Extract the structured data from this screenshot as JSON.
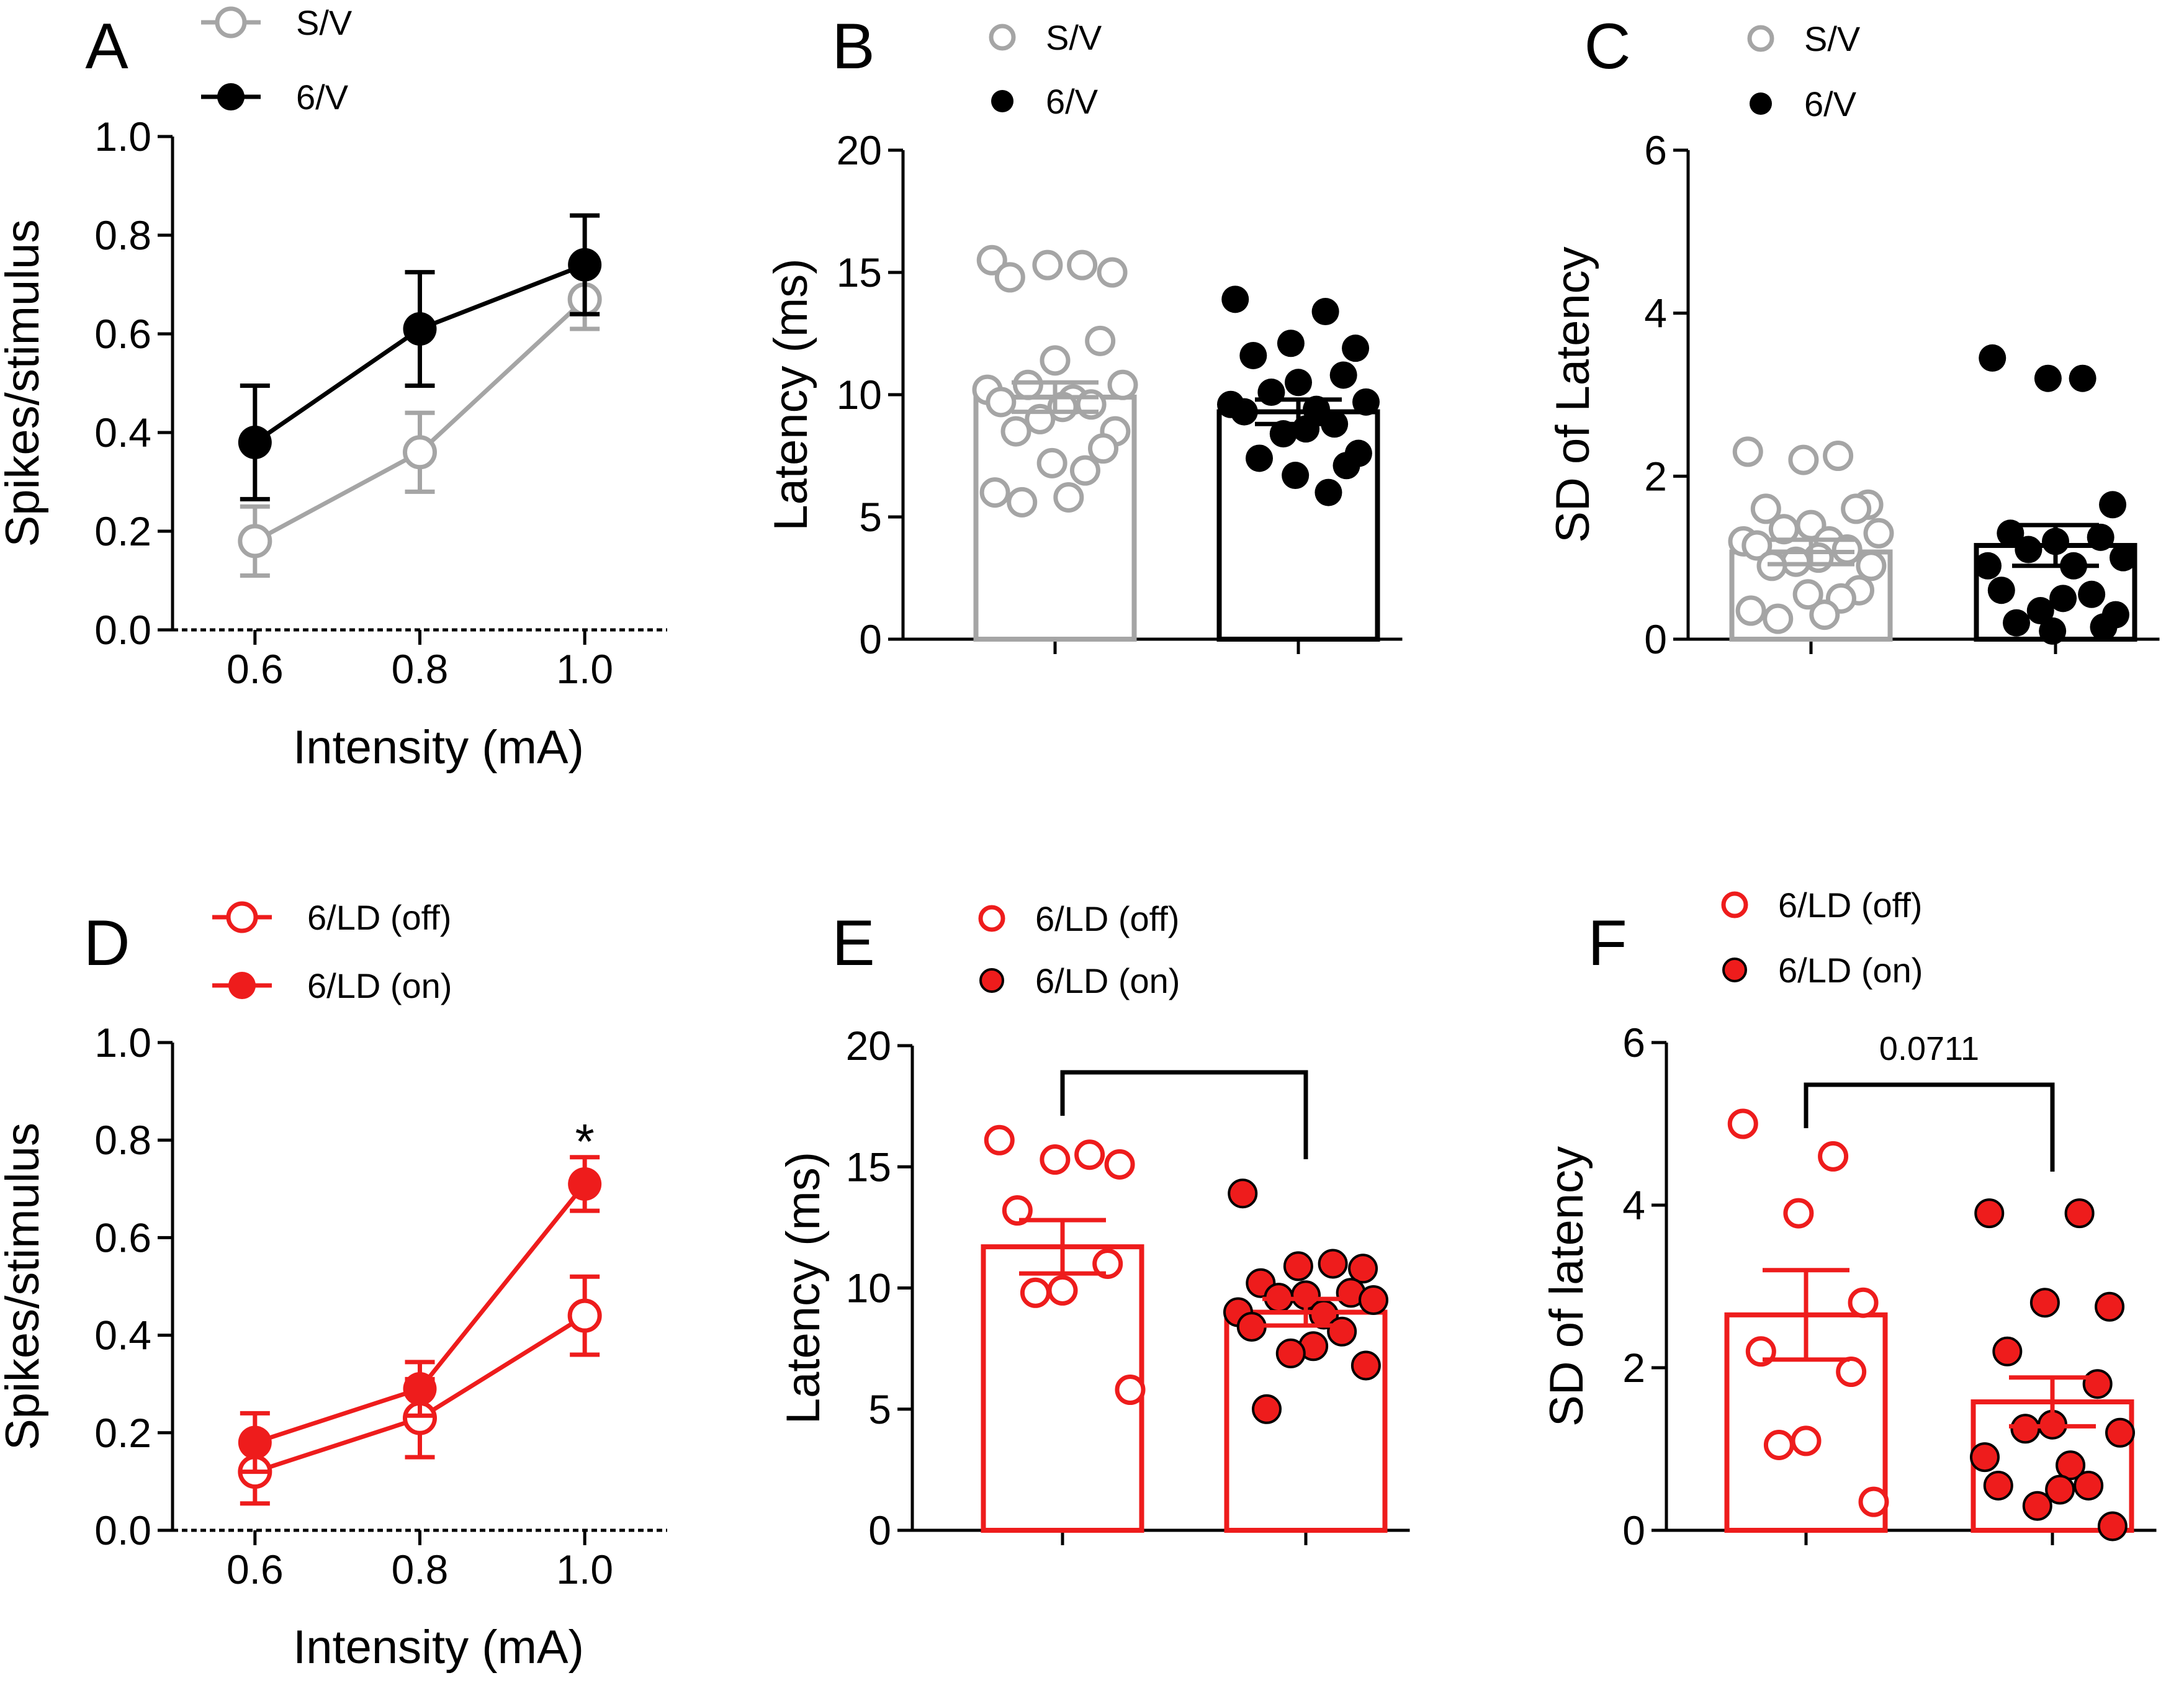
{
  "colors": {
    "grey": "#a5a5a5",
    "black": "#000000",
    "red": "#ee1c1c",
    "white": "#ffffff"
  },
  "chart_data": [
    {
      "panel": "A",
      "type": "line",
      "xlabel": "Intensity (mA)",
      "ylabel": "Spikes/stimulus",
      "x": [
        0.6,
        0.8,
        1.0
      ],
      "x_ticks": [
        "0.6",
        "0.8",
        "1.0"
      ],
      "ylim": [
        0,
        1.0
      ],
      "y_ticks": [
        "0.0",
        "0.2",
        "0.4",
        "0.6",
        "0.8",
        "1.0"
      ],
      "series": [
        {
          "name": "S/V",
          "color": "grey",
          "filled": false,
          "values": [
            0.18,
            0.36,
            0.67
          ],
          "sem": [
            0.07,
            0.08,
            0.06
          ]
        },
        {
          "name": "6/V",
          "color": "black",
          "filled": true,
          "values": [
            0.38,
            0.61,
            0.74
          ],
          "sem": [
            0.115,
            0.115,
            0.1
          ]
        }
      ],
      "annotations": []
    },
    {
      "panel": "B",
      "type": "bar",
      "ylabel": "Latency (ms)",
      "ylim": [
        0,
        20
      ],
      "y_ticks": [
        "0",
        "5",
        "10",
        "15",
        "20"
      ],
      "series": [
        {
          "name": "S/V",
          "color": "grey",
          "filled": false,
          "mean": 9.9,
          "sem": 0.6,
          "points": [
            15.5,
            15.3,
            15.3,
            15.0,
            14.8,
            12.2,
            11.4,
            10.4,
            10.4,
            10.2,
            9.8,
            9.7,
            9.6,
            9.5,
            9.0,
            8.5,
            8.5,
            7.8,
            7.2,
            6.9,
            6.0,
            5.8,
            5.6
          ]
        },
        {
          "name": "6/V",
          "color": "black",
          "filled": true,
          "mean": 9.3,
          "sem": 0.5,
          "points": [
            13.9,
            13.4,
            12.1,
            11.9,
            11.6,
            10.8,
            10.5,
            10.1,
            9.7,
            9.6,
            9.4,
            9.3,
            8.8,
            8.6,
            8.4,
            7.6,
            7.4,
            7.1,
            6.7,
            6.0
          ]
        }
      ],
      "annotations": []
    },
    {
      "panel": "C",
      "type": "bar",
      "ylabel": "SD of Latency",
      "ylim": [
        0,
        6
      ],
      "y_ticks": [
        "0",
        "2",
        "4",
        "6"
      ],
      "series": [
        {
          "name": "S/V",
          "color": "grey",
          "filled": false,
          "mean": 1.07,
          "sem": 0.15,
          "points": [
            2.3,
            2.25,
            2.2,
            1.65,
            1.6,
            1.6,
            1.4,
            1.35,
            1.3,
            1.2,
            1.2,
            1.15,
            1.1,
            1.0,
            0.95,
            0.9,
            0.9,
            0.6,
            0.55,
            0.5,
            0.35,
            0.3,
            0.25
          ]
        },
        {
          "name": "6/V",
          "color": "black",
          "filled": true,
          "mean": 1.15,
          "sem": 0.25,
          "points": [
            3.45,
            3.2,
            3.2,
            1.65,
            1.3,
            1.25,
            1.2,
            1.1,
            1.0,
            0.9,
            0.9,
            0.6,
            0.55,
            0.5,
            0.35,
            0.3,
            0.2,
            0.15,
            0.1
          ]
        }
      ],
      "annotations": []
    },
    {
      "panel": "D",
      "type": "line",
      "xlabel": "Intensity (mA)",
      "ylabel": "Spikes/stimulus",
      "x": [
        0.6,
        0.8,
        1.0
      ],
      "x_ticks": [
        "0.6",
        "0.8",
        "1.0"
      ],
      "ylim": [
        0,
        1.0
      ],
      "y_ticks": [
        "0.0",
        "0.2",
        "0.4",
        "0.6",
        "0.8",
        "1.0"
      ],
      "series": [
        {
          "name": "6/LD (off)",
          "color": "red",
          "filled": false,
          "values": [
            0.12,
            0.23,
            0.44
          ],
          "sem": [
            0.065,
            0.08,
            0.08
          ]
        },
        {
          "name": "6/LD (on)",
          "color": "red",
          "filled": true,
          "values": [
            0.18,
            0.29,
            0.71
          ],
          "sem": [
            0.06,
            0.055,
            0.055
          ]
        }
      ],
      "annotations": [
        {
          "text": "*",
          "x": 1.0,
          "y": 0.8
        }
      ]
    },
    {
      "panel": "E",
      "type": "bar",
      "ylabel": "Latency (ms)",
      "ylim": [
        0,
        20
      ],
      "y_ticks": [
        "0",
        "5",
        "10",
        "15",
        "20"
      ],
      "series": [
        {
          "name": "6/LD (off)",
          "color": "red",
          "filled": false,
          "mean": 11.7,
          "sem": 1.1,
          "points": [
            16.1,
            15.5,
            15.3,
            15.1,
            13.2,
            11.0,
            9.9,
            9.8,
            5.8
          ]
        },
        {
          "name": "6/LD (on)",
          "color": "red",
          "filled": true,
          "mean": 9.0,
          "sem": 0.55,
          "points": [
            13.9,
            11.0,
            10.9,
            10.8,
            10.2,
            9.8,
            9.7,
            9.6,
            9.5,
            9.0,
            8.9,
            8.4,
            8.2,
            7.6,
            7.3,
            6.8,
            5.0
          ]
        }
      ],
      "annotations": [
        {
          "type": "bracket",
          "text": ""
        }
      ]
    },
    {
      "panel": "F",
      "type": "bar",
      "ylabel": "SD of latency",
      "ylim": [
        0,
        6
      ],
      "y_ticks": [
        "0",
        "2",
        "4",
        "6"
      ],
      "series": [
        {
          "name": "6/LD (off)",
          "color": "red",
          "filled": false,
          "mean": 2.65,
          "sem": 0.55,
          "points": [
            5.0,
            4.6,
            3.9,
            2.8,
            2.2,
            1.95,
            1.1,
            1.05,
            0.35
          ]
        },
        {
          "name": "6/LD (on)",
          "color": "red",
          "filled": true,
          "mean": 1.58,
          "sem": 0.3,
          "points": [
            3.9,
            3.9,
            2.8,
            2.75,
            2.2,
            1.8,
            1.3,
            1.25,
            1.2,
            0.9,
            0.8,
            0.55,
            0.55,
            0.5,
            0.3,
            0.05
          ]
        }
      ],
      "annotations": [
        {
          "type": "bracket",
          "text": "0.0711"
        }
      ]
    }
  ]
}
